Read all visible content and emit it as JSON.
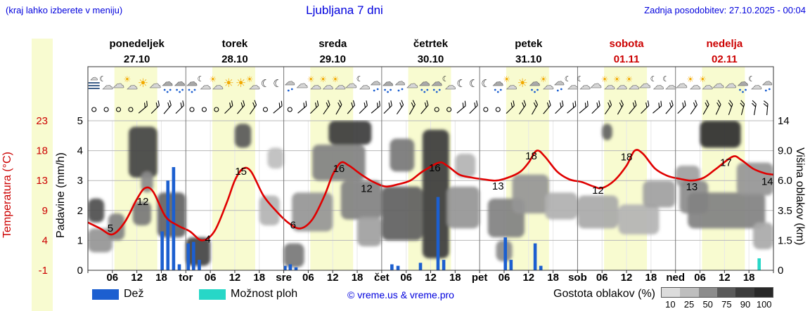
{
  "header": {
    "hint": "(kraj lahko izberete v meniju)",
    "title": "Ljubljana 7 dni",
    "updated": "Zadnja posodobitev: 27.10.2025 - 00:04"
  },
  "axes": {
    "temp_title": "Temperatura (°C)",
    "precip_title": "Padavine (mm/h)",
    "cloud_title": "Višina oblakov (km)",
    "temp_ticks": [
      "23",
      "18",
      "13",
      "9",
      "4",
      "-1"
    ],
    "precip_ticks": [
      "5",
      "4",
      "3",
      "2",
      "1",
      "0"
    ],
    "cloud_ticks": [
      "14",
      "9.0",
      "6.0",
      "3.5",
      "1.5",
      "0"
    ],
    "x_hour_labels": [
      "06",
      "12",
      "18"
    ]
  },
  "days": [
    {
      "name": "ponedeljek",
      "date": "27.10",
      "abbr": "",
      "color": "#000000"
    },
    {
      "name": "torek",
      "date": "28.10",
      "abbr": "tor",
      "color": "#000000"
    },
    {
      "name": "sreda",
      "date": "29.10",
      "abbr": "sre",
      "color": "#000000"
    },
    {
      "name": "četrtek",
      "date": "30.10",
      "abbr": "čet",
      "color": "#000000"
    },
    {
      "name": "petek",
      "date": "31.10",
      "abbr": "pet",
      "color": "#000000"
    },
    {
      "name": "sobota",
      "date": "01.11",
      "abbr": "sob",
      "color": "#cc0000"
    },
    {
      "name": "nedelja",
      "date": "02.11",
      "abbr": "ned",
      "color": "#cc0000"
    }
  ],
  "legend": {
    "rain_label": "Dež",
    "showers_label": "Možnost ploh",
    "credit": "© vreme.us & vreme.pro",
    "cloud_density_label": "Gostota oblakov (%)",
    "density_values": [
      10,
      25,
      50,
      75,
      90,
      100
    ],
    "density_ticks": [
      "10",
      "25",
      "50",
      "75",
      "90",
      "100"
    ]
  },
  "colors": {
    "accent_blue": "#0000dd",
    "temp_red": "#e00000",
    "red_label": "#cc0000",
    "rain_blue": "#1c5fd0",
    "showers_cyan": "#27d7c7",
    "day_band": "#f8fbd0",
    "grid": "#b8b8b8",
    "frame": "#333333"
  },
  "chart_data": {
    "type": "meteogram",
    "hours_span": 168,
    "temp_axis_values": [
      -1,
      4,
      9,
      13,
      18,
      23
    ],
    "cloud_axis_km": [
      0,
      1.5,
      3.5,
      6.0,
      9.0,
      14
    ],
    "precip_axis_mm": [
      0,
      1,
      2,
      3,
      4,
      5
    ],
    "temperature": {
      "unit": "°C",
      "points": [
        [
          0,
          7
        ],
        [
          3,
          6
        ],
        [
          6,
          5
        ],
        [
          9,
          7
        ],
        [
          12,
          10.5
        ],
        [
          14,
          12
        ],
        [
          16,
          11.5
        ],
        [
          19,
          8
        ],
        [
          22,
          6.5
        ],
        [
          25,
          5.5
        ],
        [
          28,
          4
        ],
        [
          31,
          5.5
        ],
        [
          34,
          10
        ],
        [
          36,
          13
        ],
        [
          38,
          15
        ],
        [
          40,
          14.5
        ],
        [
          43,
          11
        ],
        [
          46,
          9
        ],
        [
          49,
          7
        ],
        [
          52,
          6
        ],
        [
          55,
          7.5
        ],
        [
          58,
          11
        ],
        [
          60,
          14
        ],
        [
          62,
          16
        ],
        [
          64,
          15.5
        ],
        [
          67,
          14
        ],
        [
          70,
          12.8
        ],
        [
          73,
          12.2
        ],
        [
          76,
          12.5
        ],
        [
          79,
          13
        ],
        [
          82,
          14.5
        ],
        [
          86,
          16
        ],
        [
          88,
          15.5
        ],
        [
          91,
          14
        ],
        [
          94,
          13.5
        ],
        [
          97,
          13.2
        ],
        [
          100,
          13
        ],
        [
          103,
          13.5
        ],
        [
          106,
          14.5
        ],
        [
          108,
          16
        ],
        [
          110,
          18
        ],
        [
          112,
          17
        ],
        [
          115,
          14.5
        ],
        [
          118,
          13.2
        ],
        [
          121,
          12.8
        ],
        [
          124,
          12.2
        ],
        [
          126,
          12
        ],
        [
          129,
          13
        ],
        [
          132,
          15.5
        ],
        [
          134,
          18
        ],
        [
          136,
          17.5
        ],
        [
          139,
          15
        ],
        [
          142,
          13.8
        ],
        [
          145,
          13.3
        ],
        [
          148,
          13
        ],
        [
          151,
          13.5
        ],
        [
          154,
          15
        ],
        [
          158,
          17
        ],
        [
          160,
          16.5
        ],
        [
          163,
          15
        ],
        [
          166,
          14.2
        ],
        [
          168,
          14
        ]
      ],
      "labels": [
        [
          5.5,
          5,
          "5",
          0,
          -4
        ],
        [
          14.5,
          12,
          "12",
          -6,
          24
        ],
        [
          28,
          4,
          "4",
          8,
          3
        ],
        [
          37.5,
          14.3,
          "15",
          0,
          3
        ],
        [
          50.8,
          6,
          "6",
          -3,
          0
        ],
        [
          61.5,
          15,
          "16",
          0,
          5
        ],
        [
          69,
          12.6,
          "12",
          -4,
          12
        ],
        [
          85,
          15,
          "16",
          0,
          4
        ],
        [
          100.5,
          13,
          "13",
          0,
          13
        ],
        [
          109.5,
          17,
          "18",
          -5,
          4
        ],
        [
          125,
          12,
          "12",
          0,
          8
        ],
        [
          132,
          16.5,
          "18",
          0,
          1
        ],
        [
          148,
          13,
          "13",
          0,
          14
        ],
        [
          156,
          16,
          "17",
          2,
          5
        ],
        [
          166.5,
          14,
          "14",
          0,
          15
        ]
      ]
    },
    "precipitation": {
      "unit": "mm/h",
      "bars": [
        [
          18.2,
          1.3,
          "rain"
        ],
        [
          19.6,
          3.0,
          "rain"
        ],
        [
          21.0,
          3.45,
          "rain"
        ],
        [
          22.4,
          0.2,
          "rain"
        ],
        [
          24.6,
          0.9,
          "rain"
        ],
        [
          25.9,
          0.95,
          "rain"
        ],
        [
          27.3,
          0.35,
          "rain"
        ],
        [
          48.3,
          0.15,
          "rain"
        ],
        [
          49.6,
          0.2,
          "rain"
        ],
        [
          51.0,
          0.1,
          "rain"
        ],
        [
          74.5,
          0.2,
          "rain"
        ],
        [
          76.0,
          0.15,
          "rain"
        ],
        [
          81.5,
          0.25,
          "rain"
        ],
        [
          85.8,
          2.45,
          "rain"
        ],
        [
          87.2,
          0.35,
          "rain"
        ],
        [
          102.3,
          1.1,
          "rain"
        ],
        [
          103.7,
          0.35,
          "rain"
        ],
        [
          109.6,
          0.9,
          "rain"
        ],
        [
          111.0,
          0.15,
          "rain"
        ],
        [
          164.5,
          0.4,
          "showers"
        ]
      ]
    },
    "clouds": {
      "unit": "blobs: [t0,t1,gridBand0,gridBand1,density%]",
      "blobs": [
        [
          0,
          4,
          1.6,
          2.4,
          80
        ],
        [
          0,
          6,
          0.6,
          1.4,
          45
        ],
        [
          5,
          9,
          1.0,
          1.9,
          55
        ],
        [
          10,
          17,
          3.1,
          4.8,
          85
        ],
        [
          11,
          15.5,
          1.5,
          2.3,
          60
        ],
        [
          13,
          16,
          2.6,
          3.3,
          50
        ],
        [
          17,
          24,
          1.1,
          2.6,
          70
        ],
        [
          24,
          30,
          0.15,
          1.1,
          85
        ],
        [
          36,
          40,
          4.1,
          4.9,
          75
        ],
        [
          42,
          47,
          1.5,
          2.5,
          30
        ],
        [
          44,
          48,
          3.4,
          4.1,
          25
        ],
        [
          48,
          53,
          0.1,
          0.9,
          60
        ],
        [
          50,
          60,
          1.3,
          2.6,
          45
        ],
        [
          55,
          68,
          3.0,
          4.2,
          55
        ],
        [
          59,
          69.5,
          4.2,
          5.0,
          90
        ],
        [
          62,
          72,
          1.7,
          3.0,
          55
        ],
        [
          66,
          72,
          0.8,
          1.8,
          40
        ],
        [
          72,
          82,
          1.0,
          2.8,
          72
        ],
        [
          74,
          80,
          3.3,
          4.4,
          60
        ],
        [
          82,
          88.5,
          0.4,
          4.7,
          90
        ],
        [
          88,
          96,
          1.4,
          2.8,
          45
        ],
        [
          90,
          95,
          3.1,
          3.9,
          30
        ],
        [
          98,
          107,
          1.1,
          2.4,
          55
        ],
        [
          100,
          104,
          0.3,
          1.0,
          50
        ],
        [
          104,
          113,
          1.9,
          3.2,
          45
        ],
        [
          112,
          120,
          1.7,
          2.6,
          32
        ],
        [
          120,
          130,
          1.4,
          2.5,
          35
        ],
        [
          126,
          128.5,
          4.35,
          4.9,
          70
        ],
        [
          130,
          140,
          1.2,
          2.2,
          30
        ],
        [
          136,
          144,
          2.1,
          3.0,
          40
        ],
        [
          144,
          150,
          2.8,
          3.5,
          40
        ],
        [
          145,
          152,
          1.9,
          3.0,
          50
        ],
        [
          150,
          160,
          4.1,
          5.0,
          95
        ],
        [
          147,
          166,
          1.4,
          2.6,
          55
        ],
        [
          159,
          168,
          2.5,
          3.6,
          45
        ],
        [
          163,
          168,
          0.7,
          1.6,
          35
        ]
      ]
    },
    "weather_icons": [
      "fog",
      "moon-cloud",
      "cloud",
      "sun-cloud",
      "sun",
      "cloud",
      "rain",
      "rain",
      "rain",
      "moon-cloud",
      "sun-cloud",
      "sun",
      "sun",
      "sun-cloud",
      "moon",
      "moon",
      "drizzle",
      "cloud",
      "sun-cloud",
      "sun-cloud",
      "sun-cloud",
      "cloud",
      "moon-cloud",
      "drizzle",
      "rain",
      "drizzle",
      "cloud",
      "rain",
      "rain",
      "moon-cloud",
      "moon",
      "moon",
      "moon",
      "rain",
      "sun-cloud",
      "sun",
      "rain",
      "sun-cloud",
      "drizzle",
      "moon-cloud",
      "moon-cloud",
      "cloud",
      "sun-cloud",
      "sun-cloud",
      "sun-cloud",
      "cloud",
      "moon-cloud",
      "moon-cloud",
      "cloud",
      "sun-cloud",
      "sun-cloud",
      "cloud",
      "cloud",
      "rain",
      "moon-cloud",
      "drizzle"
    ],
    "wind": [
      "c",
      "c",
      "c",
      "c",
      40,
      45,
      50,
      45,
      "c",
      "c",
      "c",
      45,
      50,
      55,
      "c",
      40,
      "c",
      40,
      45,
      55,
      60,
      50,
      45,
      40,
      45,
      55,
      60,
      50,
      "c",
      "c",
      40,
      45,
      "c",
      "c",
      45,
      55,
      60,
      50,
      45,
      40,
      40,
      45,
      55,
      60,
      50,
      45,
      40,
      50,
      45,
      55,
      60,
      65,
      70,
      75,
      80,
      85
    ]
  }
}
